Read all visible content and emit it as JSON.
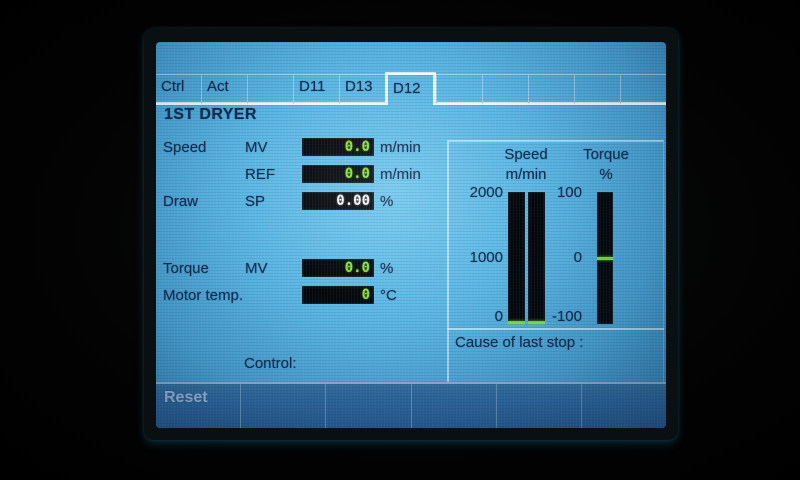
{
  "tabs": {
    "items": [
      {
        "label": "Ctrl",
        "selected": false
      },
      {
        "label": "Act",
        "selected": false
      },
      {
        "label": "",
        "selected": false
      },
      {
        "label": "D11",
        "selected": false
      },
      {
        "label": "D13",
        "selected": false
      },
      {
        "label": "D12",
        "selected": true
      },
      {
        "label": "",
        "selected": false
      },
      {
        "label": "",
        "selected": false
      },
      {
        "label": "",
        "selected": false
      },
      {
        "label": "",
        "selected": false
      },
      {
        "label": "",
        "selected": false
      }
    ]
  },
  "title": "1ST DRYER",
  "fields": [
    {
      "label": "Speed",
      "param": "MV",
      "value": "0.0",
      "unit": "m/min",
      "editable": false
    },
    {
      "label": "",
      "param": "REF",
      "value": "0.0",
      "unit": "m/min",
      "editable": false
    },
    {
      "label": "Draw",
      "param": "SP",
      "value": "0.00",
      "unit": "%",
      "editable": true
    },
    {
      "label": "Torque",
      "param": "MV",
      "value": "0.0",
      "unit": "%",
      "editable": false
    },
    {
      "label": "Motor temp.",
      "param": "",
      "value": "0",
      "unit": "°C",
      "editable": false
    }
  ],
  "chart_data": {
    "type": "bar",
    "title": "Speed / Torque gauges",
    "gauges": {
      "speed": {
        "title": "Speed",
        "unit": "m/min",
        "ticks": [
          "2000",
          "1000",
          "0"
        ],
        "min": 0,
        "max": 2000,
        "bars": [
          {
            "name": "speed-bar-1",
            "value": 0
          },
          {
            "name": "speed-bar-2",
            "value": 0
          }
        ]
      },
      "torque": {
        "title": "Torque",
        "unit": "%",
        "ticks": [
          "100",
          "0",
          "-100"
        ],
        "min": -100,
        "max": 100,
        "bars": [
          {
            "name": "torque-bar",
            "value": 0
          }
        ]
      }
    }
  },
  "cause": {
    "label": "Cause of last stop :",
    "value": ""
  },
  "control": {
    "label": "Control:",
    "value": ""
  },
  "footer": {
    "buttons": [
      {
        "label": "Reset",
        "enabled": false
      },
      {
        "label": "",
        "enabled": false
      },
      {
        "label": "",
        "enabled": false
      },
      {
        "label": "",
        "enabled": false
      },
      {
        "label": "",
        "enabled": false
      },
      {
        "label": "",
        "enabled": false
      }
    ]
  },
  "colors": {
    "screen_blue": "#58b4e2",
    "text_dark": "#10294e",
    "value_green": "#8ce53a",
    "value_white": "#f4f9fd",
    "box_black": "#04070a",
    "marker_green": "#7de23f",
    "footer_blue": "#2d68a0",
    "border_white": "#eef6fc"
  }
}
